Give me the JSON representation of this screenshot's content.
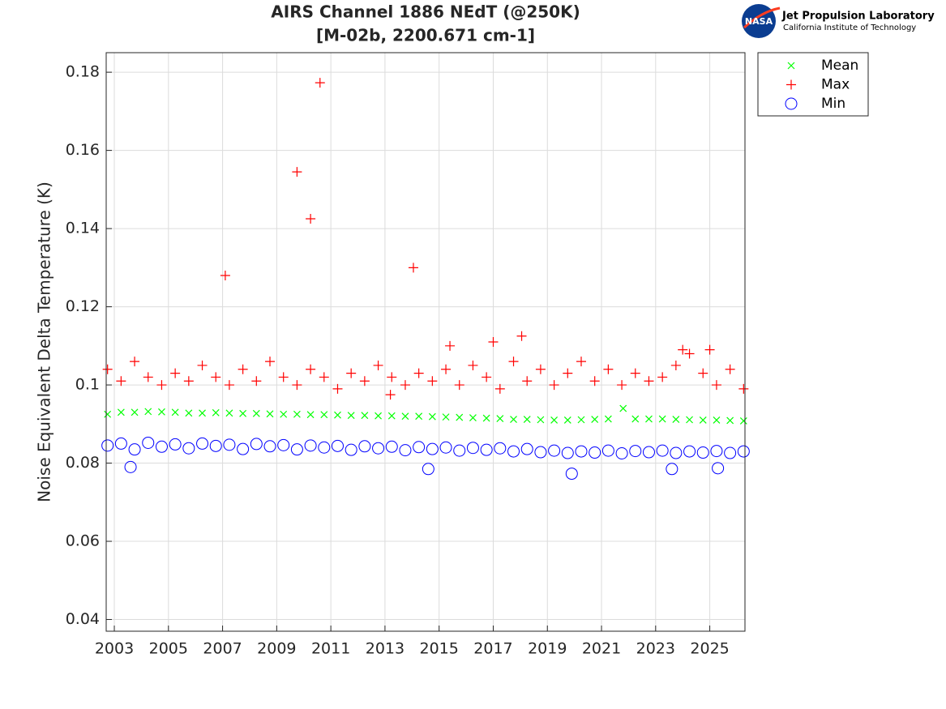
{
  "chart_data": {
    "type": "scatter",
    "title": "AIRS Channel 1886 NEdT (@250K)",
    "subtitle": "[M-02b, 2200.671 cm-1]",
    "y_label": "Noise Equivalent Delta Temperature (K)",
    "xlim": [
      2002.7,
      2026.3
    ],
    "ylim": [
      0.037,
      0.185
    ],
    "xticks": [
      2003,
      2005,
      2007,
      2009,
      2011,
      2013,
      2015,
      2017,
      2019,
      2021,
      2023,
      2025
    ],
    "yticks": [
      0.04,
      0.06,
      0.08,
      0.1,
      0.12,
      0.14,
      0.16,
      0.18
    ],
    "grid": true,
    "legend": "outside-top-right",
    "series": [
      {
        "name": "Mean",
        "color": "#00ff00",
        "marker": "x",
        "x": [
          2002.75,
          2003.25,
          2003.75,
          2004.25,
          2004.75,
          2005.25,
          2005.75,
          2006.25,
          2006.75,
          2007.25,
          2007.75,
          2008.25,
          2008.75,
          2009.25,
          2009.75,
          2010.25,
          2010.75,
          2011.25,
          2011.75,
          2012.25,
          2012.75,
          2013.25,
          2013.75,
          2014.25,
          2014.75,
          2015.25,
          2015.75,
          2016.25,
          2016.75,
          2017.25,
          2017.75,
          2018.25,
          2018.75,
          2019.25,
          2019.75,
          2020.25,
          2020.75,
          2021.25,
          2021.8,
          2022.25,
          2022.75,
          2023.25,
          2023.75,
          2024.25,
          2024.75,
          2025.25,
          2025.75,
          2026.25
        ],
        "values": [
          0.0925,
          0.093,
          0.093,
          0.0932,
          0.0931,
          0.093,
          0.0928,
          0.0928,
          0.0929,
          0.0928,
          0.0927,
          0.0927,
          0.0926,
          0.0925,
          0.0925,
          0.0924,
          0.0924,
          0.0923,
          0.0922,
          0.0922,
          0.0921,
          0.0921,
          0.092,
          0.092,
          0.0919,
          0.0918,
          0.0917,
          0.0916,
          0.0915,
          0.0914,
          0.0912,
          0.0912,
          0.0911,
          0.091,
          0.091,
          0.0911,
          0.0912,
          0.0913,
          0.094,
          0.0913,
          0.0913,
          0.0913,
          0.0912,
          0.0911,
          0.091,
          0.091,
          0.0909,
          0.0908
        ]
      },
      {
        "name": "Max",
        "color": "#ff0000",
        "marker": "plus",
        "x": [
          2002.75,
          2003.25,
          2003.75,
          2004.25,
          2004.75,
          2005.25,
          2005.75,
          2006.25,
          2006.75,
          2007.25,
          2007.75,
          2008.25,
          2008.75,
          2009.25,
          2009.75,
          2010.25,
          2010.75,
          2011.25,
          2011.75,
          2012.25,
          2012.75,
          2013.25,
          2013.75,
          2014.25,
          2014.75,
          2015.25,
          2015.75,
          2016.25,
          2016.75,
          2017.25,
          2017.75,
          2018.25,
          2018.75,
          2019.25,
          2019.75,
          2020.25,
          2020.75,
          2021.25,
          2021.75,
          2022.25,
          2022.75,
          2023.25,
          2023.75,
          2024.25,
          2024.75,
          2025.25,
          2025.75,
          2026.25,
          2007.1,
          2009.75,
          2010.25,
          2010.6,
          2014.05,
          2015.4,
          2017.0,
          2018.05,
          2013.2,
          2024.0,
          2025.0
        ],
        "values": [
          0.104,
          0.101,
          0.106,
          0.102,
          0.1,
          0.103,
          0.101,
          0.105,
          0.102,
          0.1,
          0.104,
          0.101,
          0.106,
          0.102,
          0.1,
          0.104,
          0.102,
          0.099,
          0.103,
          0.101,
          0.105,
          0.102,
          0.1,
          0.103,
          0.101,
          0.104,
          0.1,
          0.105,
          0.102,
          0.099,
          0.106,
          0.101,
          0.104,
          0.1,
          0.103,
          0.106,
          0.101,
          0.104,
          0.1,
          0.103,
          0.101,
          0.102,
          0.105,
          0.108,
          0.103,
          0.1,
          0.104,
          0.099,
          0.128,
          0.1545,
          0.1425,
          0.1773,
          0.13,
          0.11,
          0.111,
          0.1125,
          0.0975,
          0.109,
          0.109
        ]
      },
      {
        "name": "Min",
        "color": "#0000ff",
        "marker": "circle",
        "x": [
          2002.75,
          2003.25,
          2003.75,
          2004.25,
          2004.75,
          2005.25,
          2005.75,
          2006.25,
          2006.75,
          2007.25,
          2007.75,
          2008.25,
          2008.75,
          2009.25,
          2009.75,
          2010.25,
          2010.75,
          2011.25,
          2011.75,
          2012.25,
          2012.75,
          2013.25,
          2013.75,
          2014.25,
          2014.75,
          2015.25,
          2015.75,
          2016.25,
          2016.75,
          2017.25,
          2017.75,
          2018.25,
          2018.75,
          2019.25,
          2019.75,
          2020.25,
          2020.75,
          2021.25,
          2021.75,
          2022.25,
          2022.75,
          2023.25,
          2023.75,
          2024.25,
          2024.75,
          2025.25,
          2025.75,
          2026.25,
          2003.6,
          2014.6,
          2019.9,
          2023.6,
          2025.3
        ],
        "values": [
          0.0845,
          0.085,
          0.0835,
          0.0852,
          0.0842,
          0.0848,
          0.0838,
          0.085,
          0.0844,
          0.0847,
          0.0836,
          0.0849,
          0.0843,
          0.0846,
          0.0835,
          0.0845,
          0.084,
          0.0844,
          0.0834,
          0.0843,
          0.0838,
          0.0842,
          0.0833,
          0.0841,
          0.0836,
          0.084,
          0.0832,
          0.0839,
          0.0834,
          0.0838,
          0.083,
          0.0836,
          0.0828,
          0.0832,
          0.0826,
          0.083,
          0.0827,
          0.0832,
          0.0825,
          0.0831,
          0.0828,
          0.0832,
          0.0826,
          0.083,
          0.0827,
          0.0831,
          0.0826,
          0.083,
          0.079,
          0.0785,
          0.0773,
          0.0785,
          0.0787
        ]
      }
    ]
  },
  "logo": {
    "badge": "NASA",
    "name": "Jet Propulsion Laboratory",
    "affiliation": "California Institute of Technology"
  }
}
